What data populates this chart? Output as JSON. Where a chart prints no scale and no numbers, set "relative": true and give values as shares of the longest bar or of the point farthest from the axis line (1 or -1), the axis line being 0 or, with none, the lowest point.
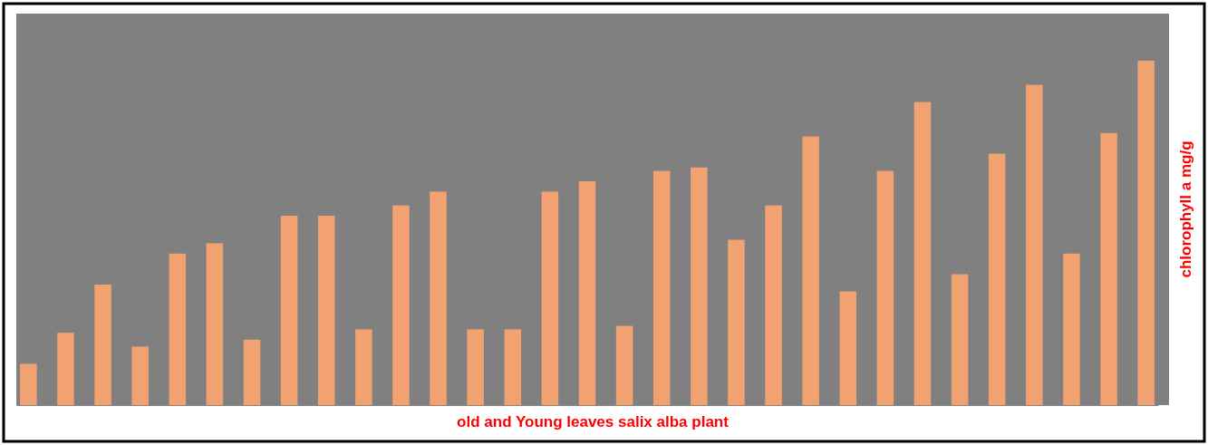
{
  "chart_data": {
    "type": "bar",
    "relative": true,
    "xlabel": "old and Young leaves salix alba plant",
    "ylabel": "chlorophyll a  mg/g",
    "color": "#f2a170",
    "categories": [
      null,
      null,
      null,
      null,
      null,
      null,
      null,
      null,
      null,
      null,
      null,
      null,
      null,
      null,
      null,
      null,
      null,
      null,
      null,
      null,
      null,
      null,
      null,
      null,
      null,
      null,
      null,
      null,
      null,
      null,
      null
    ],
    "values": [
      0.12,
      0.21,
      0.35,
      0.17,
      0.44,
      0.47,
      0.19,
      0.55,
      0.55,
      0.22,
      0.58,
      0.62,
      0.22,
      0.22,
      0.62,
      0.65,
      0.23,
      0.68,
      0.69,
      0.48,
      0.58,
      0.78,
      0.33,
      0.68,
      0.88,
      0.38,
      0.73,
      0.93,
      0.44,
      0.79,
      1
    ]
  }
}
